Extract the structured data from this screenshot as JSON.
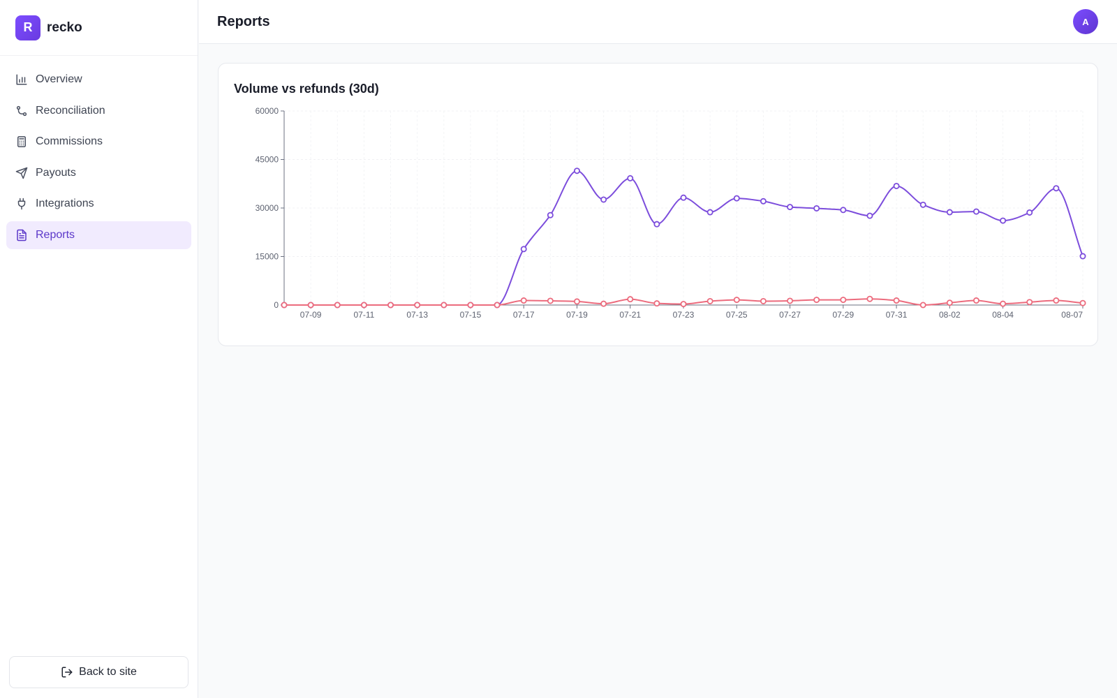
{
  "app": {
    "logo_letter": "R",
    "name": "recko"
  },
  "sidebar": {
    "items": [
      {
        "label": "Overview",
        "icon": "bar-chart-icon",
        "active": false
      },
      {
        "label": "Reconciliation",
        "icon": "git-merge-icon",
        "active": false
      },
      {
        "label": "Commissions",
        "icon": "calculator-icon",
        "active": false
      },
      {
        "label": "Payouts",
        "icon": "send-icon",
        "active": false
      },
      {
        "label": "Integrations",
        "icon": "plug-icon",
        "active": false
      },
      {
        "label": "Reports",
        "icon": "file-text-icon",
        "active": true
      }
    ],
    "back_label": "Back to site"
  },
  "header": {
    "title": "Reports",
    "avatar_initial": "A"
  },
  "colors": {
    "accent": "#6b46e0",
    "volume_line": "#7c4ddc",
    "refunds_line": "#ec6b7d",
    "active_nav_bg": "#f1ebfe"
  },
  "chart_data": {
    "type": "line",
    "title": "Volume vs refunds (30d)",
    "xlabel": "",
    "ylabel": "",
    "ylim": [
      0,
      60000
    ],
    "yticks": [
      0,
      15000,
      30000,
      45000,
      60000
    ],
    "x": [
      "07-08",
      "07-09",
      "07-10",
      "07-11",
      "07-12",
      "07-13",
      "07-14",
      "07-15",
      "07-16",
      "07-17",
      "07-18",
      "07-19",
      "07-20",
      "07-21",
      "07-22",
      "07-23",
      "07-24",
      "07-25",
      "07-26",
      "07-27",
      "07-28",
      "07-29",
      "07-30",
      "07-31",
      "08-01",
      "08-02",
      "08-03",
      "08-04",
      "08-05",
      "08-06",
      "08-07"
    ],
    "xtick_labels": [
      "07-09",
      "07-11",
      "07-13",
      "07-15",
      "07-17",
      "07-19",
      "07-21",
      "07-23",
      "07-25",
      "07-27",
      "07-29",
      "07-31",
      "08-02",
      "08-04",
      "08-07"
    ],
    "grid": true,
    "legend": "none",
    "series": [
      {
        "key": "volume",
        "color": "#7c4ddc",
        "values": [
          0,
          0,
          0,
          0,
          0,
          0,
          0,
          0,
          0,
          17300,
          27800,
          41500,
          32600,
          39200,
          25000,
          33200,
          28700,
          33000,
          32100,
          30300,
          29900,
          29400,
          27600,
          36800,
          31000,
          28700,
          28900,
          26100,
          28600,
          36100,
          15100
        ]
      },
      {
        "key": "refunds",
        "color": "#ec6b7d",
        "values": [
          0,
          0,
          0,
          0,
          0,
          0,
          0,
          0,
          0,
          1400,
          1300,
          1100,
          400,
          1800,
          500,
          300,
          1200,
          1600,
          1200,
          1300,
          1600,
          1600,
          1900,
          1400,
          0,
          700,
          1400,
          400,
          900,
          1400,
          600
        ]
      }
    ]
  }
}
